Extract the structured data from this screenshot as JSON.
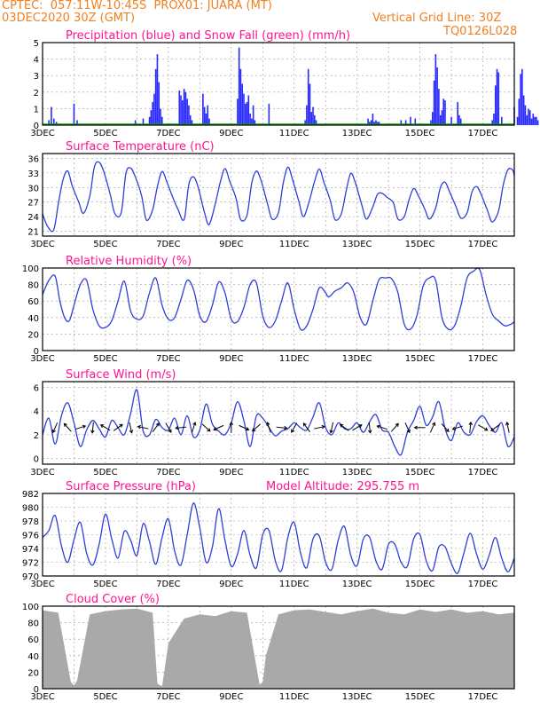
{
  "header": {
    "line1": "CPTEC:  057:11W-10:45S  PROX01: JUARA (MT)",
    "line2": "03DEC2020 30Z (GMT)",
    "grid_note": "Vertical Grid Line: 30Z",
    "code": "TQ0126L028"
  },
  "colors": {
    "header": "#f08020",
    "panel_title": "#ff1493",
    "precip": "#2828ff",
    "snow": "#00a000",
    "line": "#2d3fd8",
    "cloud": "#a9a9a9",
    "grid": "#9a9a9a"
  },
  "x_ticks": [
    "3DEC",
    "5DEC",
    "7DEC",
    "9DEC",
    "11DEC",
    "13DEC",
    "15DEC",
    "17DEC"
  ],
  "chart_data": [
    {
      "id": "precip",
      "type": "bar",
      "title": "Precipitation (blue) and Snow Fall (green) (mm/h)",
      "ylim": [
        0,
        5
      ],
      "yticks": [
        "0",
        "1",
        "2",
        "3",
        "4",
        "5"
      ],
      "x_unit": "days since 03DEC",
      "x": [
        0.2,
        0.28,
        0.36,
        0.44,
        1.0,
        1.1,
        2.95,
        3.2,
        3.4,
        3.45,
        3.5,
        3.55,
        3.6,
        3.65,
        3.7,
        3.75,
        3.8,
        4.35,
        4.4,
        4.45,
        4.5,
        4.55,
        4.6,
        4.65,
        4.7,
        4.75,
        5.1,
        5.15,
        5.2,
        5.25,
        5.3,
        6.2,
        6.25,
        6.3,
        6.35,
        6.4,
        6.45,
        6.5,
        6.55,
        6.6,
        6.65,
        6.7,
        6.75,
        7.2,
        8.35,
        8.4,
        8.45,
        8.5,
        8.55,
        8.6,
        8.65,
        8.7,
        10.35,
        10.4,
        10.45,
        10.5,
        10.55,
        10.6,
        10.65,
        10.7,
        11.4,
        11.55,
        11.7,
        11.85,
        12.35,
        12.4,
        12.45,
        12.5,
        12.55,
        12.6,
        12.65,
        12.7,
        12.75,
        12.8,
        13.0,
        13.2,
        13.25,
        13.3,
        14.3,
        14.35,
        14.4,
        14.45,
        14.5,
        14.6,
        15.0,
        15.1,
        15.15,
        15.2,
        15.25,
        15.3,
        15.35,
        15.4,
        15.45,
        15.5,
        15.55,
        15.6,
        15.65,
        15.7,
        15.75
      ],
      "values": [
        0.3,
        1.1,
        0.4,
        0.2,
        1.3,
        0.3,
        0.3,
        0.4,
        0.5,
        0.9,
        1.4,
        1.9,
        3.4,
        4.3,
        2.6,
        1.0,
        0.5,
        2.1,
        1.8,
        1.5,
        2.2,
        2.0,
        1.6,
        1.2,
        0.6,
        0.3,
        1.9,
        1.1,
        0.7,
        1.2,
        0.4,
        1.6,
        4.7,
        3.4,
        2.5,
        1.9,
        1.3,
        1.4,
        1.8,
        0.7,
        0.4,
        1.2,
        0.3,
        1.3,
        0.3,
        1.2,
        3.4,
        2.5,
        0.8,
        1.1,
        0.6,
        0.3,
        0.4,
        0.2,
        0.3,
        0.7,
        0.2,
        0.3,
        0.2,
        0.2,
        0.3,
        0.3,
        0.5,
        0.4,
        0.3,
        0.8,
        2.7,
        4.3,
        3.5,
        2.2,
        0.6,
        0.9,
        1.6,
        1.5,
        0.5,
        1.4,
        0.6,
        0.4,
        0.3,
        0.7,
        2.4,
        3.4,
        3.2,
        0.5,
        1.1,
        0.5,
        1.6,
        3.1,
        3.4,
        1.8,
        1.2,
        0.6,
        1.0,
        0.9,
        0.4,
        0.7,
        0.5,
        0.5,
        0.3
      ],
      "snow_values": "0 throughout"
    },
    {
      "id": "temperature",
      "type": "line",
      "title": "Surface Temperature (nC)",
      "ylim": [
        20,
        37
      ],
      "yticks": [
        "21",
        "24",
        "27",
        "30",
        "33",
        "36"
      ],
      "x_unit": "days since 03DEC",
      "x": [
        0.0,
        0.15,
        0.35,
        0.5,
        0.65,
        0.8,
        0.95,
        1.15,
        1.3,
        1.5,
        1.65,
        1.8,
        1.95,
        2.15,
        2.3,
        2.5,
        2.65,
        2.8,
        2.95,
        3.15,
        3.3,
        3.5,
        3.65,
        3.8,
        3.95,
        4.15,
        4.3,
        4.5,
        4.65,
        4.8,
        4.95,
        5.15,
        5.3,
        5.5,
        5.65,
        5.8,
        5.95,
        6.15,
        6.3,
        6.5,
        6.65,
        6.8,
        6.95,
        7.15,
        7.3,
        7.5,
        7.65,
        7.8,
        7.95,
        8.15,
        8.3,
        8.5,
        8.65,
        8.8,
        8.95,
        9.15,
        9.3,
        9.5,
        9.65,
        9.8,
        9.95,
        10.15,
        10.3,
        10.5,
        10.65,
        10.8,
        10.95,
        11.15,
        11.3,
        11.5,
        11.65,
        11.8,
        11.95,
        12.15,
        12.3,
        12.5,
        12.65,
        12.8,
        12.95,
        13.15,
        13.3,
        13.5,
        13.65,
        13.8,
        13.95,
        14.15,
        14.3,
        14.5,
        14.65,
        14.8,
        14.95,
        15.0
      ],
      "values": [
        24.6,
        22.1,
        21.2,
        26.6,
        31.6,
        33.4,
        30.2,
        27.0,
        24.7,
        28.2,
        34.3,
        35.2,
        33.2,
        28.6,
        24.6,
        24.8,
        32.9,
        34.0,
        32.2,
        28.3,
        23.3,
        25.4,
        30.2,
        33.3,
        31.2,
        27.8,
        25.6,
        23.4,
        30.6,
        32.2,
        30.0,
        24.8,
        22.4,
        26.9,
        31.1,
        33.9,
        31.3,
        27.8,
        23.4,
        24.3,
        30.9,
        33.4,
        31.4,
        26.7,
        23.5,
        24.8,
        30.8,
        34.2,
        31.6,
        27.1,
        24.0,
        27.7,
        31.3,
        33.8,
        31.0,
        27.3,
        23.4,
        24.6,
        29.2,
        32.9,
        30.9,
        26.4,
        23.5,
        26.0,
        28.6,
        28.8,
        28.0,
        26.9,
        23.5,
        24.0,
        27.4,
        29.8,
        28.3,
        25.6,
        23.5,
        25.8,
        30.0,
        31.1,
        29.0,
        26.0,
        23.7,
        24.8,
        29.0,
        30.2,
        28.5,
        25.2,
        22.9,
        25.2,
        30.6,
        33.7,
        33.6,
        32.4
      ]
    },
    {
      "id": "humidity",
      "type": "line",
      "title": "Relative Humidity (%)",
      "ylim": [
        0,
        100
      ],
      "yticks": [
        "0",
        "20",
        "40",
        "60",
        "80",
        "100"
      ],
      "x_unit": "days since 03DEC",
      "x": [
        0.0,
        0.2,
        0.4,
        0.55,
        0.7,
        0.85,
        1.0,
        1.2,
        1.4,
        1.6,
        1.8,
        2.0,
        2.2,
        2.4,
        2.6,
        2.8,
        3.0,
        3.2,
        3.4,
        3.6,
        3.8,
        4.0,
        4.2,
        4.4,
        4.6,
        4.8,
        5.0,
        5.2,
        5.4,
        5.6,
        5.8,
        6.0,
        6.2,
        6.4,
        6.6,
        6.8,
        7.0,
        7.2,
        7.4,
        7.6,
        7.8,
        8.0,
        8.2,
        8.4,
        8.6,
        8.8,
        9.0,
        9.1,
        9.3,
        9.5,
        9.7,
        9.9,
        10.1,
        10.3,
        10.5,
        10.7,
        10.9,
        11.1,
        11.3,
        11.5,
        11.7,
        11.9,
        12.1,
        12.3,
        12.5,
        12.7,
        12.9,
        13.1,
        13.3,
        13.5,
        13.7,
        13.9,
        14.1,
        14.3,
        14.5,
        14.7,
        14.9,
        15.0
      ],
      "values": [
        68,
        85,
        90,
        60,
        40,
        36,
        55,
        80,
        85,
        50,
        30,
        28,
        36,
        60,
        84,
        48,
        38,
        42,
        70,
        88,
        55,
        38,
        40,
        62,
        85,
        74,
        42,
        35,
        55,
        83,
        70,
        38,
        35,
        52,
        80,
        82,
        42,
        28,
        36,
        60,
        82,
        50,
        26,
        30,
        50,
        76,
        70,
        65,
        72,
        76,
        82,
        70,
        40,
        32,
        60,
        86,
        88,
        87,
        70,
        32,
        26,
        42,
        78,
        88,
        85,
        40,
        26,
        30,
        54,
        88,
        96,
        98,
        68,
        44,
        36,
        30,
        32,
        35
      ]
    },
    {
      "id": "wind",
      "type": "line",
      "title": "Surface Wind (m/s)",
      "ylim": [
        -0.5,
        6.5
      ],
      "yticks": [
        "0",
        "2",
        "4",
        "6"
      ],
      "x_unit": "days since 03DEC",
      "x": [
        0.0,
        0.2,
        0.4,
        0.6,
        0.8,
        1.0,
        1.2,
        1.4,
        1.6,
        1.8,
        2.0,
        2.2,
        2.4,
        2.6,
        2.8,
        3.0,
        3.2,
        3.4,
        3.6,
        3.8,
        4.0,
        4.2,
        4.4,
        4.6,
        4.8,
        5.0,
        5.2,
        5.4,
        5.6,
        5.8,
        6.0,
        6.2,
        6.4,
        6.6,
        6.8,
        7.0,
        7.2,
        7.4,
        7.6,
        7.8,
        8.0,
        8.2,
        8.4,
        8.6,
        8.8,
        9.0,
        9.2,
        9.4,
        9.6,
        9.8,
        10.0,
        10.2,
        10.4,
        10.6,
        10.8,
        11.0,
        11.2,
        11.4,
        11.6,
        11.8,
        12.0,
        12.2,
        12.4,
        12.6,
        12.8,
        13.0,
        13.2,
        13.4,
        13.6,
        13.8,
        14.0,
        14.2,
        14.4,
        14.6,
        14.8,
        15.0
      ],
      "values": [
        2.0,
        3.4,
        1.2,
        3.6,
        4.7,
        3.0,
        1.0,
        2.4,
        3.2,
        2.5,
        1.8,
        3.2,
        2.6,
        2.0,
        3.8,
        5.8,
        2.3,
        2.0,
        3.3,
        2.6,
        2.4,
        3.4,
        2.0,
        3.6,
        1.8,
        2.4,
        4.6,
        2.9,
        2.3,
        2.0,
        3.0,
        4.8,
        3.2,
        1.0,
        3.6,
        3.4,
        2.6,
        1.9,
        2.3,
        2.5,
        3.0,
        2.6,
        2.4,
        3.5,
        4.7,
        2.6,
        2.0,
        3.0,
        2.5,
        2.5,
        3.0,
        2.2,
        3.1,
        3.7,
        2.4,
        2.2,
        1.0,
        0.3,
        2.2,
        3.2,
        4.4,
        2.8,
        3.5,
        4.8,
        2.5,
        1.5,
        3.0,
        2.2,
        2.0,
        3.1,
        3.6,
        2.8,
        2.2,
        3.0,
        1.0,
        1.8
      ]
    },
    {
      "id": "pressure",
      "type": "line",
      "title": "Surface Pressure (hPa)",
      "ylim": [
        970,
        982
      ],
      "yticks": [
        "970",
        "972",
        "974",
        "976",
        "978",
        "980",
        "982"
      ],
      "x_unit": "days since 03DEC",
      "x": [
        0.0,
        0.2,
        0.4,
        0.6,
        0.8,
        1.0,
        1.2,
        1.4,
        1.6,
        1.8,
        2.0,
        2.2,
        2.4,
        2.6,
        2.8,
        3.0,
        3.2,
        3.4,
        3.6,
        3.8,
        4.0,
        4.2,
        4.4,
        4.6,
        4.8,
        5.0,
        5.2,
        5.4,
        5.6,
        5.8,
        6.0,
        6.2,
        6.4,
        6.6,
        6.8,
        7.0,
        7.2,
        7.4,
        7.6,
        7.8,
        8.0,
        8.2,
        8.4,
        8.6,
        8.8,
        9.0,
        9.2,
        9.4,
        9.6,
        9.8,
        10.0,
        10.2,
        10.4,
        10.6,
        10.8,
        11.0,
        11.2,
        11.4,
        11.6,
        11.8,
        12.0,
        12.2,
        12.4,
        12.6,
        12.8,
        13.0,
        13.2,
        13.4,
        13.6,
        13.8,
        14.0,
        14.2,
        14.4,
        14.6,
        14.8,
        15.0
      ],
      "values": [
        975.6,
        976.6,
        978.8,
        974.4,
        972.0,
        975.3,
        977.8,
        973.3,
        971.6,
        974.6,
        979.0,
        975.4,
        972.6,
        976.5,
        975.2,
        973.0,
        977.6,
        975.0,
        971.7,
        975.6,
        978.3,
        973.6,
        971.6,
        976.0,
        980.6,
        977.0,
        972.0,
        974.2,
        979.8,
        975.2,
        971.4,
        973.2,
        976.6,
        973.0,
        971.2,
        976.0,
        976.6,
        972.2,
        970.8,
        975.6,
        977.8,
        973.4,
        971.2,
        975.4,
        975.8,
        972.0,
        971.0,
        975.2,
        977.2,
        973.0,
        971.5,
        975.4,
        975.6,
        972.2,
        971.0,
        974.6,
        974.6,
        972.0,
        971.4,
        975.4,
        976.0,
        972.2,
        970.8,
        974.2,
        974.2,
        971.8,
        970.4,
        973.4,
        976.2,
        973.2,
        971.0,
        973.0,
        975.6,
        972.6,
        970.6,
        972.6
      ],
      "annotation": "Model Altitude: 295.755 m"
    },
    {
      "id": "cloud",
      "type": "bar",
      "title": "Cloud Cover (%)",
      "ylim": [
        0,
        100
      ],
      "yticks": [
        "0",
        "20",
        "40",
        "60",
        "80",
        "100"
      ],
      "x_unit": "days since 03DEC",
      "x": [
        0.0,
        0.5,
        0.9,
        1.0,
        1.1,
        1.5,
        2.0,
        2.5,
        3.0,
        3.5,
        3.65,
        3.8,
        4.0,
        4.5,
        5.0,
        5.5,
        6.0,
        6.5,
        6.9,
        7.0,
        7.1,
        7.5,
        8.0,
        8.5,
        9.0,
        9.5,
        10.0,
        10.5,
        11.0,
        11.5,
        12.0,
        12.5,
        13.0,
        13.5,
        14.0,
        14.5,
        15.0
      ],
      "values": [
        95,
        92,
        8,
        4,
        10,
        90,
        94,
        96,
        97,
        92,
        6,
        3,
        55,
        85,
        90,
        88,
        94,
        92,
        5,
        8,
        40,
        90,
        95,
        96,
        93,
        90,
        94,
        97,
        92,
        90,
        96,
        93,
        96,
        92,
        94,
        90,
        92
      ]
    }
  ]
}
